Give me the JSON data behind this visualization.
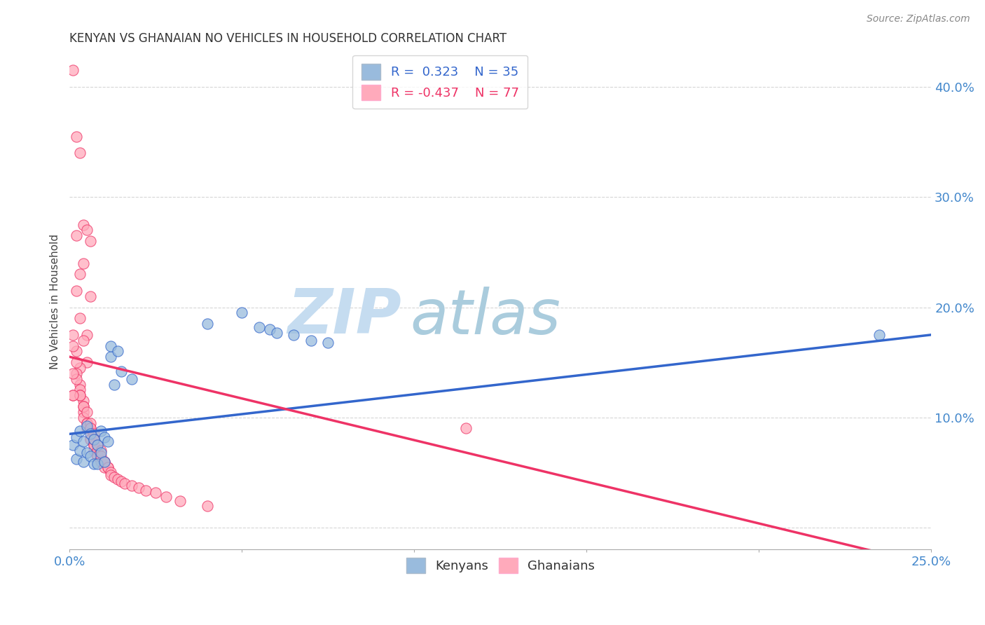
{
  "title": "KENYAN VS GHANAIAN NO VEHICLES IN HOUSEHOLD CORRELATION CHART",
  "source": "Source: ZipAtlas.com",
  "ylabel": "No Vehicles in Household",
  "xlim": [
    0.0,
    0.25
  ],
  "ylim": [
    -0.02,
    0.43
  ],
  "R_kenyan": 0.323,
  "N_kenyan": 35,
  "R_ghanaian": -0.437,
  "N_ghanaian": 77,
  "color_kenyan": "#99BBDD",
  "color_ghanaian": "#FFAABB",
  "line_color_kenyan": "#3366CC",
  "line_color_ghanaian": "#EE3366",
  "watermark_zip": "ZIP",
  "watermark_atlas": "atlas",
  "watermark_color_zip": "#BBDDEE",
  "watermark_color_atlas": "#AACCDD",
  "kenyan_line": [
    [
      0.0,
      0.085
    ],
    [
      0.25,
      0.175
    ]
  ],
  "ghanaian_line": [
    [
      0.0,
      0.155
    ],
    [
      0.205,
      0.0
    ]
  ],
  "kenyan_points": [
    [
      0.001,
      0.075
    ],
    [
      0.002,
      0.082
    ],
    [
      0.002,
      0.062
    ],
    [
      0.003,
      0.088
    ],
    [
      0.003,
      0.07
    ],
    [
      0.004,
      0.078
    ],
    [
      0.004,
      0.06
    ],
    [
      0.005,
      0.092
    ],
    [
      0.005,
      0.068
    ],
    [
      0.006,
      0.085
    ],
    [
      0.006,
      0.065
    ],
    [
      0.007,
      0.08
    ],
    [
      0.007,
      0.058
    ],
    [
      0.008,
      0.075
    ],
    [
      0.008,
      0.058
    ],
    [
      0.009,
      0.088
    ],
    [
      0.009,
      0.068
    ],
    [
      0.01,
      0.082
    ],
    [
      0.01,
      0.06
    ],
    [
      0.011,
      0.078
    ],
    [
      0.012,
      0.155
    ],
    [
      0.012,
      0.165
    ],
    [
      0.013,
      0.13
    ],
    [
      0.014,
      0.16
    ],
    [
      0.015,
      0.142
    ],
    [
      0.018,
      0.135
    ],
    [
      0.04,
      0.185
    ],
    [
      0.05,
      0.195
    ],
    [
      0.055,
      0.182
    ],
    [
      0.058,
      0.18
    ],
    [
      0.06,
      0.177
    ],
    [
      0.065,
      0.175
    ],
    [
      0.07,
      0.17
    ],
    [
      0.075,
      0.168
    ],
    [
      0.235,
      0.175
    ]
  ],
  "ghanaian_points": [
    [
      0.001,
      0.415
    ],
    [
      0.002,
      0.355
    ],
    [
      0.003,
      0.34
    ],
    [
      0.004,
      0.275
    ],
    [
      0.006,
      0.21
    ],
    [
      0.005,
      0.27
    ],
    [
      0.006,
      0.26
    ],
    [
      0.003,
      0.23
    ],
    [
      0.002,
      0.265
    ],
    [
      0.004,
      0.24
    ],
    [
      0.005,
      0.175
    ],
    [
      0.002,
      0.215
    ],
    [
      0.003,
      0.19
    ],
    [
      0.004,
      0.17
    ],
    [
      0.005,
      0.15
    ],
    [
      0.001,
      0.175
    ],
    [
      0.002,
      0.16
    ],
    [
      0.003,
      0.145
    ],
    [
      0.001,
      0.165
    ],
    [
      0.002,
      0.15
    ],
    [
      0.003,
      0.13
    ],
    [
      0.001,
      0.12
    ],
    [
      0.002,
      0.14
    ],
    [
      0.003,
      0.125
    ],
    [
      0.004,
      0.115
    ],
    [
      0.004,
      0.105
    ],
    [
      0.002,
      0.135
    ],
    [
      0.003,
      0.12
    ],
    [
      0.004,
      0.1
    ],
    [
      0.005,
      0.09
    ],
    [
      0.003,
      0.12
    ],
    [
      0.004,
      0.11
    ],
    [
      0.005,
      0.095
    ],
    [
      0.006,
      0.08
    ],
    [
      0.004,
      0.11
    ],
    [
      0.005,
      0.095
    ],
    [
      0.006,
      0.08
    ],
    [
      0.007,
      0.07
    ],
    [
      0.005,
      0.105
    ],
    [
      0.006,
      0.09
    ],
    [
      0.007,
      0.075
    ],
    [
      0.008,
      0.065
    ],
    [
      0.006,
      0.095
    ],
    [
      0.007,
      0.08
    ],
    [
      0.008,
      0.07
    ],
    [
      0.006,
      0.09
    ],
    [
      0.007,
      0.075
    ],
    [
      0.008,
      0.065
    ],
    [
      0.007,
      0.085
    ],
    [
      0.008,
      0.07
    ],
    [
      0.007,
      0.08
    ],
    [
      0.008,
      0.065
    ],
    [
      0.008,
      0.075
    ],
    [
      0.009,
      0.06
    ],
    [
      0.009,
      0.07
    ],
    [
      0.01,
      0.055
    ],
    [
      0.009,
      0.065
    ],
    [
      0.01,
      0.06
    ],
    [
      0.011,
      0.055
    ],
    [
      0.01,
      0.06
    ],
    [
      0.011,
      0.055
    ],
    [
      0.012,
      0.05
    ],
    [
      0.012,
      0.048
    ],
    [
      0.013,
      0.046
    ],
    [
      0.014,
      0.044
    ],
    [
      0.015,
      0.042
    ],
    [
      0.016,
      0.04
    ],
    [
      0.018,
      0.038
    ],
    [
      0.02,
      0.036
    ],
    [
      0.022,
      0.034
    ],
    [
      0.025,
      0.032
    ],
    [
      0.028,
      0.028
    ],
    [
      0.032,
      0.024
    ],
    [
      0.04,
      0.02
    ],
    [
      0.115,
      0.09
    ],
    [
      0.001,
      0.14
    ],
    [
      0.001,
      0.12
    ]
  ]
}
